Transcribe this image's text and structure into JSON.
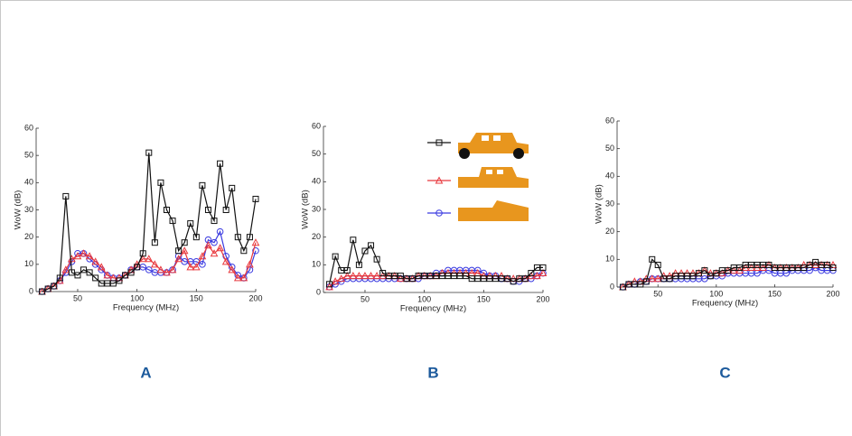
{
  "chart_data": [
    {
      "type": "line",
      "label": "A",
      "xlabel": "Frequency (MHz)",
      "ylabel": "WoW (dB)",
      "x": [
        20,
        25,
        30,
        35,
        40,
        45,
        50,
        55,
        60,
        65,
        70,
        75,
        80,
        85,
        90,
        95,
        100,
        105,
        110,
        115,
        120,
        125,
        130,
        135,
        140,
        145,
        150,
        155,
        160,
        165,
        170,
        175,
        180,
        185,
        190,
        195,
        200
      ],
      "xlim": [
        15,
        200
      ],
      "ylim": [
        0,
        60
      ],
      "xticks": [
        50,
        100,
        150,
        200
      ],
      "yticks": [
        0,
        10,
        20,
        30,
        40,
        50,
        60
      ],
      "series": [
        {
          "color": "#111111",
          "marker": "square",
          "values": [
            0,
            1,
            2,
            5,
            35,
            7,
            6,
            8,
            7,
            5,
            3,
            3,
            3,
            4,
            6,
            7,
            9,
            14,
            51,
            18,
            40,
            30,
            26,
            15,
            18,
            25,
            20,
            39,
            30,
            26,
            47,
            30,
            38,
            20,
            15,
            20,
            34
          ]
        },
        {
          "color": "#e8383d",
          "marker": "triangle",
          "values": [
            0,
            1,
            2,
            4,
            8,
            12,
            13,
            14,
            13,
            11,
            9,
            6,
            5,
            5,
            6,
            8,
            10,
            12,
            12,
            10,
            8,
            7,
            8,
            12,
            15,
            9,
            9,
            13,
            17,
            14,
            16,
            11,
            8,
            5,
            5,
            10,
            18
          ]
        },
        {
          "color": "#3a3ae0",
          "marker": "circle",
          "values": [
            0,
            1,
            2,
            4,
            7,
            11,
            14,
            14,
            12,
            10,
            8,
            6,
            5,
            5,
            6,
            8,
            9,
            9,
            8,
            7,
            7,
            7,
            8,
            13,
            11,
            11,
            11,
            10,
            19,
            18,
            22,
            13,
            9,
            6,
            5,
            8,
            15
          ]
        }
      ]
    },
    {
      "type": "line",
      "label": "B",
      "xlabel": "Frequency (MHz)",
      "ylabel": "WoW (dB)",
      "legend": "top-right",
      "x": [
        20,
        25,
        30,
        35,
        40,
        45,
        50,
        55,
        60,
        65,
        70,
        75,
        80,
        85,
        90,
        95,
        100,
        105,
        110,
        115,
        120,
        125,
        130,
        135,
        140,
        145,
        150,
        155,
        160,
        165,
        170,
        175,
        180,
        185,
        190,
        195,
        200
      ],
      "xlim": [
        15,
        200
      ],
      "ylim": [
        0,
        60
      ],
      "xticks": [
        50,
        100,
        150,
        200
      ],
      "yticks": [
        0,
        10,
        20,
        30,
        40,
        50,
        60
      ],
      "series": [
        {
          "color": "#111111",
          "marker": "square",
          "values": [
            3,
            13,
            8,
            8,
            19,
            10,
            15,
            17,
            12,
            7,
            6,
            6,
            6,
            5,
            5,
            6,
            6,
            6,
            6,
            6,
            6,
            6,
            6,
            6,
            5,
            5,
            5,
            5,
            5,
            5,
            5,
            4,
            5,
            5,
            7,
            9,
            9
          ]
        },
        {
          "color": "#e8383d",
          "marker": "triangle",
          "values": [
            2,
            4,
            5,
            6,
            6,
            6,
            6,
            6,
            6,
            6,
            6,
            6,
            5,
            5,
            5,
            6,
            6,
            6,
            6,
            7,
            7,
            7,
            7,
            7,
            7,
            7,
            6,
            6,
            6,
            6,
            5,
            5,
            5,
            5,
            6,
            6,
            7
          ]
        },
        {
          "color": "#3a3ae0",
          "marker": "circle",
          "values": [
            2,
            3,
            4,
            5,
            5,
            5,
            5,
            5,
            5,
            5,
            5,
            5,
            5,
            5,
            5,
            5,
            6,
            6,
            7,
            7,
            8,
            8,
            8,
            8,
            8,
            8,
            7,
            6,
            6,
            5,
            5,
            4,
            4,
            5,
            5,
            6,
            7
          ]
        }
      ]
    },
    {
      "type": "line",
      "label": "C",
      "xlabel": "Frequency (MHz)",
      "ylabel": "WoW (dB)",
      "x": [
        20,
        25,
        30,
        35,
        40,
        45,
        50,
        55,
        60,
        65,
        70,
        75,
        80,
        85,
        90,
        95,
        100,
        105,
        110,
        115,
        120,
        125,
        130,
        135,
        140,
        145,
        150,
        155,
        160,
        165,
        170,
        175,
        180,
        185,
        190,
        195,
        200
      ],
      "xlim": [
        15,
        200
      ],
      "ylim": [
        0,
        60
      ],
      "xticks": [
        50,
        100,
        150,
        200
      ],
      "yticks": [
        0,
        10,
        20,
        30,
        40,
        50,
        60
      ],
      "series": [
        {
          "color": "#111111",
          "marker": "square",
          "values": [
            0,
            1,
            1,
            1,
            2,
            10,
            8,
            3,
            3,
            4,
            4,
            4,
            4,
            5,
            6,
            4,
            5,
            6,
            6,
            7,
            7,
            8,
            8,
            8,
            8,
            8,
            7,
            7,
            7,
            7,
            7,
            7,
            8,
            9,
            8,
            8,
            7
          ]
        },
        {
          "color": "#e8383d",
          "marker": "triangle",
          "values": [
            0,
            1,
            2,
            2,
            3,
            3,
            3,
            4,
            4,
            5,
            5,
            5,
            5,
            5,
            6,
            5,
            5,
            5,
            6,
            6,
            6,
            7,
            7,
            7,
            7,
            8,
            7,
            7,
            7,
            7,
            7,
            8,
            8,
            8,
            8,
            8,
            8
          ]
        },
        {
          "color": "#3a3ae0",
          "marker": "circle",
          "values": [
            0,
            1,
            1,
            2,
            2,
            3,
            3,
            3,
            3,
            3,
            3,
            3,
            3,
            3,
            3,
            4,
            4,
            4,
            5,
            5,
            5,
            5,
            5,
            5,
            6,
            6,
            5,
            5,
            5,
            6,
            6,
            6,
            6,
            7,
            6,
            6,
            6
          ]
        }
      ]
    }
  ]
}
